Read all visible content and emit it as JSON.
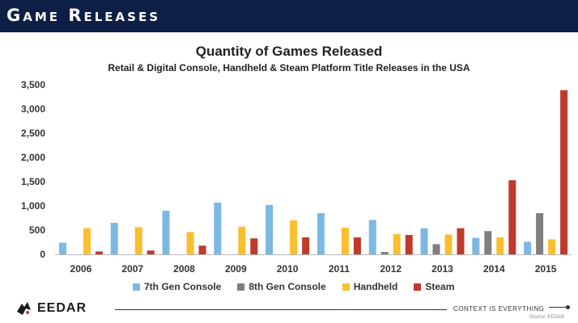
{
  "header": {
    "title": "Game Releases"
  },
  "footer": {
    "logo": "EEDAR",
    "tagline": "CONTEXT IS EVERYTHING",
    "source": "Source: EEDAR"
  },
  "chart_data": {
    "type": "bar",
    "title": "Quantity of Games Released",
    "subtitle": "Retail & Digital Console, Handheld & Steam Platform Title Releases in the USA",
    "categories": [
      "2006",
      "2007",
      "2008",
      "2009",
      "2010",
      "2011",
      "2012",
      "2013",
      "2014",
      "2015"
    ],
    "ylim": [
      0,
      3500
    ],
    "yticks": [
      "0",
      "500",
      "1,000",
      "1,500",
      "2,000",
      "2,500",
      "3,000",
      "3,500"
    ],
    "grid": false,
    "legend_position": "bottom",
    "series": [
      {
        "name": "7th Gen Console",
        "color": "#7db8e3",
        "values": [
          240,
          650,
          900,
          1070,
          1020,
          850,
          710,
          540,
          340,
          260
        ]
      },
      {
        "name": "8th Gen Console",
        "color": "#7f7f7f",
        "values": [
          0,
          0,
          0,
          0,
          0,
          0,
          50,
          210,
          480,
          850
        ]
      },
      {
        "name": "Handheld",
        "color": "#fbbf2e",
        "values": [
          540,
          560,
          460,
          570,
          700,
          550,
          420,
          410,
          350,
          310
        ]
      },
      {
        "name": "Steam",
        "color": "#c0392b",
        "values": [
          60,
          80,
          180,
          330,
          350,
          350,
          400,
          540,
          1530,
          3390
        ]
      }
    ]
  }
}
